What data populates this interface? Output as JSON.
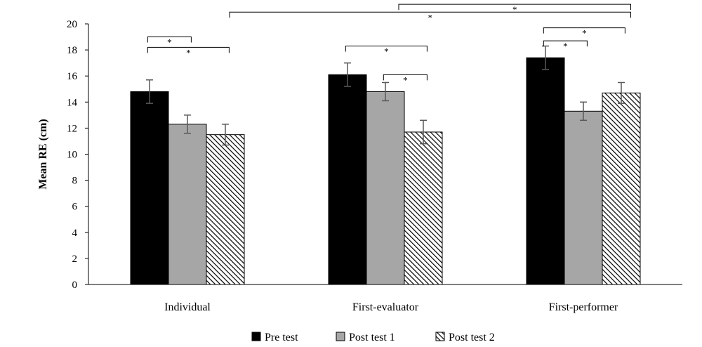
{
  "chart_data": {
    "type": "bar",
    "title": "",
    "xlabel": "",
    "ylabel": "Mean RE (cm)",
    "ylim": [
      0,
      20
    ],
    "yticks": [
      0,
      2,
      4,
      6,
      8,
      10,
      12,
      14,
      16,
      18,
      20
    ],
    "grid": false,
    "legend_position": "bottom-center",
    "categories": [
      "Individual",
      "First-evaluator",
      "First-performer"
    ],
    "series": [
      {
        "name": "Pre test",
        "values": [
          14.8,
          16.1,
          17.4
        ],
        "error": [
          0.9,
          0.9,
          0.9
        ],
        "fill": "#000000",
        "pattern": "solid"
      },
      {
        "name": "Post test 1",
        "values": [
          12.3,
          14.8,
          13.3
        ],
        "error": [
          0.7,
          0.7,
          0.7
        ],
        "fill": "#a6a6a6",
        "pattern": "solid"
      },
      {
        "name": "Post test 2",
        "values": [
          11.5,
          11.7,
          14.7
        ],
        "error": [
          0.8,
          0.9,
          0.8
        ],
        "fill": "#000000",
        "pattern": "diagonal-hatch"
      }
    ],
    "significance": [
      {
        "category": 0,
        "from": 0,
        "to": 1,
        "level": 19.0,
        "label": "*"
      },
      {
        "category": 0,
        "from": 0,
        "to": 2,
        "level": 18.2,
        "label": "*"
      },
      {
        "category": 1,
        "from": 0,
        "to": 2,
        "level": 18.3,
        "label": "*"
      },
      {
        "category": 1,
        "from": 1,
        "to": 2,
        "level": 16.1,
        "label": "*"
      },
      {
        "category": 2,
        "from": 0,
        "to": 1,
        "level": 18.7,
        "label": "*"
      },
      {
        "category": 2,
        "from": 0,
        "to": 2,
        "level": 19.7,
        "label": "*"
      },
      {
        "category": 2,
        "from": 2,
        "to": 2,
        "across": true,
        "level": 21.5,
        "label": "*"
      },
      {
        "category": 0,
        "to_category": 2,
        "across_groups": true,
        "level": 20.9,
        "label": "*"
      }
    ],
    "bar_edge_color": "#000000",
    "error_bar_color": "#595959"
  }
}
